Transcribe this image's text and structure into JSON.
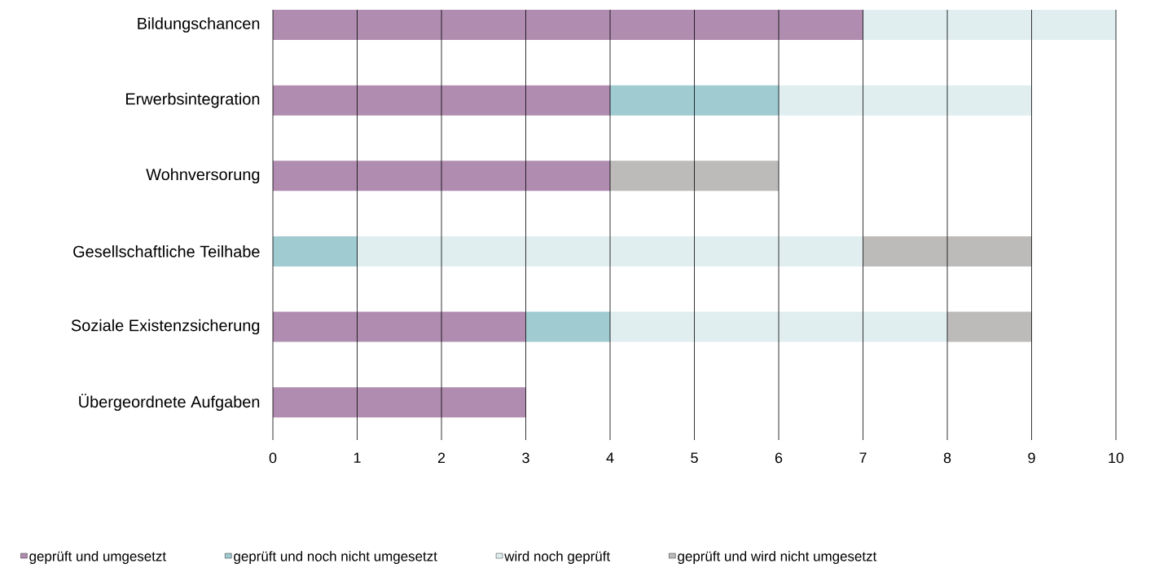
{
  "chart_data": {
    "type": "bar",
    "orientation": "horizontal",
    "stacked": true,
    "categories": [
      "Bildungschancen",
      "Erwerbsintegration",
      "Wohnversorung",
      "Gesellschaftliche Teilhabe",
      "Soziale Existenzsicherung",
      "Übergeordnete Aufgaben"
    ],
    "series": [
      {
        "name": "geprüft und umgesetzt",
        "color": "#b08db0",
        "values": [
          7,
          4,
          4,
          0,
          3,
          3
        ]
      },
      {
        "name": "geprüft und noch nicht umgesetzt",
        "color": "#9fcbd1",
        "values": [
          0,
          2,
          0,
          1,
          1,
          0
        ]
      },
      {
        "name": "wird noch geprüft",
        "color": "#e0eef0",
        "values": [
          3,
          3,
          0,
          6,
          4,
          0
        ]
      },
      {
        "name": "geprüft und wird nicht umgesetzt",
        "color": "#bdbbb9",
        "values": [
          0,
          0,
          2,
          2,
          1,
          0
        ]
      }
    ],
    "xlim": [
      0,
      10
    ],
    "xticks": [
      0,
      1,
      2,
      3,
      4,
      5,
      6,
      7,
      8,
      9,
      10
    ],
    "grid": "x",
    "legend": "bottom"
  }
}
